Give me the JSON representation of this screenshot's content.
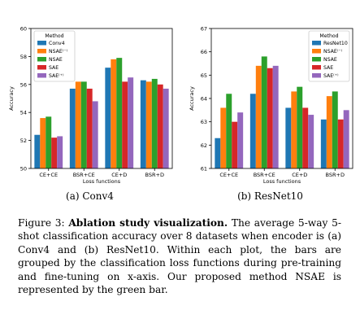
{
  "chart_data": [
    {
      "type": "bar",
      "categories": [
        "CE+CE",
        "BSR+CE",
        "CE+D",
        "BSR+D"
      ],
      "series": [
        {
          "name": "Conv4",
          "color": "#1f77b4",
          "values": [
            52.4,
            55.7,
            57.2,
            56.3
          ]
        },
        {
          "name": "NSAE⁽⁻⁾",
          "color": "#ff7f0e",
          "values": [
            53.6,
            56.2,
            57.8,
            56.2
          ]
        },
        {
          "name": "NSAE",
          "color": "#2ca02c",
          "values": [
            53.7,
            56.2,
            57.9,
            56.4
          ]
        },
        {
          "name": "SAE",
          "color": "#d62728",
          "values": [
            52.2,
            55.7,
            56.2,
            56.0
          ]
        },
        {
          "name": "SAE⁽⁺⁾",
          "color": "#9467bd",
          "values": [
            52.3,
            54.8,
            56.5,
            55.7
          ]
        }
      ],
      "xlabel": "Loss functions",
      "ylabel": "Accuracy",
      "ylim": [
        50,
        60
      ],
      "yticks": [
        50,
        52,
        54,
        56,
        58,
        60
      ],
      "legend_title": "Method",
      "legend_position": "top-left",
      "subcaption": "(a) Conv4"
    },
    {
      "type": "bar",
      "categories": [
        "CE+CE",
        "BSR+CE",
        "CE+D",
        "BSR+D"
      ],
      "series": [
        {
          "name": "ResNet10",
          "color": "#1f77b4",
          "values": [
            62.3,
            64.2,
            63.6,
            63.1
          ]
        },
        {
          "name": "NSAE⁽⁻⁾",
          "color": "#ff7f0e",
          "values": [
            63.6,
            65.4,
            64.3,
            64.1
          ]
        },
        {
          "name": "NSAE",
          "color": "#2ca02c",
          "values": [
            64.2,
            65.8,
            64.5,
            64.3
          ]
        },
        {
          "name": "SAE",
          "color": "#d62728",
          "values": [
            63.0,
            65.3,
            63.6,
            63.1
          ]
        },
        {
          "name": "SAE⁽⁺⁾",
          "color": "#9467bd",
          "values": [
            63.4,
            65.4,
            63.3,
            63.5
          ]
        }
      ],
      "xlabel": "Loss functions",
      "ylabel": "Accuracy",
      "ylim": [
        61,
        67
      ],
      "yticks": [
        61,
        62,
        63,
        64,
        65,
        66,
        67
      ],
      "legend_title": "Method",
      "legend_position": "top-right",
      "subcaption": "(b) ResNet10"
    }
  ],
  "caption": {
    "label": "Figure 3:",
    "title": "Ablation study visualization.",
    "body": "The average 5-way 5-shot classification accuracy over 8 datasets when encoder is (a) Conv4 and (b) ResNet10. Within each plot, the bars are grouped by the classification loss functions during pre-training and fine-tuning on x-axis. Our proposed method NSAE is represented by the green bar."
  }
}
